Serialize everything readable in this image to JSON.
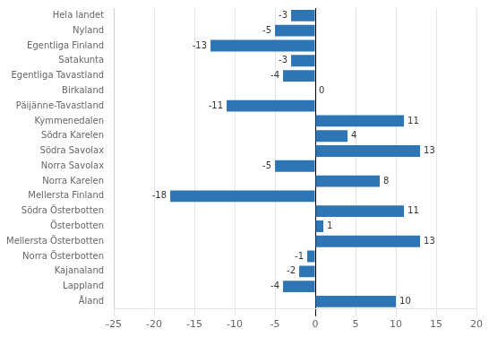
{
  "chart_data": {
    "type": "bar",
    "orientation": "horizontal",
    "categories": [
      "Hela landet",
      "Nyland",
      "Egentliga Finland",
      "Satakunta",
      "Egentliga Tavastland",
      "Birkaland",
      "Päijänne-Tavastland",
      "Kymmenedalen",
      "Södra Karelen",
      "Södra Savolax",
      "Norra Savolax",
      "Norra Karelen",
      "Mellersta Finland",
      "Södra Österbotten",
      "Österbotten",
      "Mellersta Österbotten",
      "Norra Österbotten",
      "Kajanaland",
      "Lappland",
      "Åland"
    ],
    "values": [
      -3,
      -5,
      -13,
      -3,
      -4,
      0,
      -11,
      11,
      4,
      13,
      -5,
      8,
      -18,
      11,
      1,
      13,
      -1,
      -2,
      -4,
      10
    ],
    "color": "#2E75B6",
    "xlim": [
      -25,
      20
    ],
    "xticks": [
      -25,
      -20,
      -15,
      -10,
      -5,
      0,
      5,
      10,
      15,
      20
    ],
    "grid": true,
    "data_labels": true
  }
}
